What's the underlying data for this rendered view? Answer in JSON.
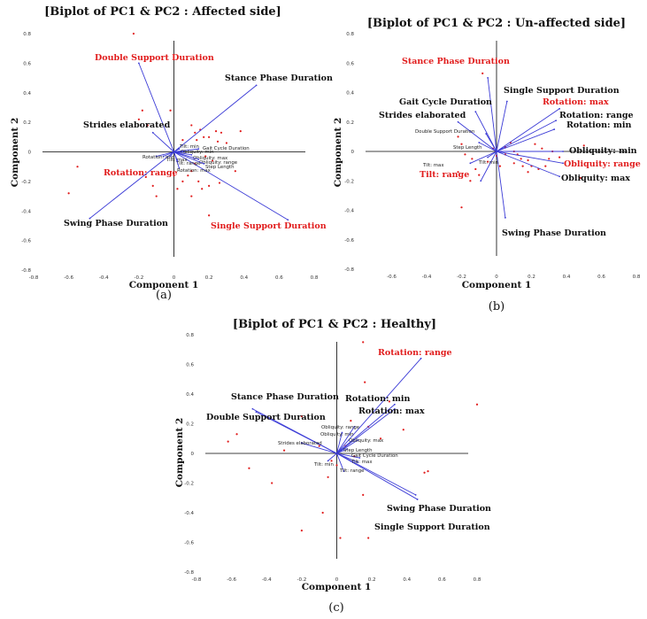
{
  "figure": {
    "colors": {
      "vector": "#3b3bd6",
      "highlight": "#e11d1d",
      "normal": "#111111",
      "score": "#e11d1d",
      "axis": "#000000"
    }
  },
  "chart_data": [
    {
      "type": "scatter",
      "panel_label": "(a)",
      "title": "[Biplot of PC1 & PC2 : Affected side]",
      "xlabel": "Component 1",
      "ylabel": "Component 2",
      "xlim": [
        -0.8,
        0.8
      ],
      "ylim": [
        -0.8,
        0.8
      ],
      "xticks": [
        "-0.8",
        "-0.6",
        "-0.4",
        "-0.2",
        "0",
        "0.2",
        "0.4",
        "0.6",
        "0.8"
      ],
      "yticks": [
        "-0.8",
        "-0.6",
        "-0.4",
        "-0.2",
        "0",
        "0.2",
        "0.4",
        "0.6",
        "0.8"
      ],
      "vectors": [
        {
          "name": "Double Support Duration",
          "x": -0.2,
          "y": 0.6,
          "label_size": "large",
          "highlight": true
        },
        {
          "name": "Stance Phase Duration",
          "x": 0.47,
          "y": 0.45,
          "label_size": "large",
          "highlight": false
        },
        {
          "name": "Strides elaborated",
          "x": -0.12,
          "y": 0.13,
          "label_size": "large",
          "highlight": false
        },
        {
          "name": "Rotation: range",
          "x": -0.06,
          "y": -0.03,
          "label_size": "large",
          "highlight": true
        },
        {
          "name": "Swing Phase Duration",
          "x": -0.48,
          "y": -0.45,
          "label_size": "large",
          "highlight": false
        },
        {
          "name": "Single Support Duration",
          "x": 0.65,
          "y": -0.46,
          "label_size": "large",
          "highlight": true
        },
        {
          "name": "Tilt: min",
          "x": 0.03,
          "y": 0.02,
          "label_size": "small",
          "highlight": false
        },
        {
          "name": "Gait Cycle Duration",
          "x": 0.14,
          "y": 0.02,
          "label_size": "small",
          "highlight": false
        },
        {
          "name": "Obliquity: min",
          "x": 0.06,
          "y": 0.0,
          "label_size": "small",
          "highlight": false
        },
        {
          "name": "Obliquity: max",
          "x": 0.1,
          "y": -0.02,
          "label_size": "small",
          "highlight": false
        },
        {
          "name": "Rotation: min",
          "x": -0.1,
          "y": -0.03,
          "label_size": "small",
          "highlight": false
        },
        {
          "name": "Tilt: max",
          "x": -0.02,
          "y": -0.03,
          "label_size": "small",
          "highlight": false
        },
        {
          "name": "Obliquity: range",
          "x": 0.14,
          "y": -0.05,
          "label_size": "small",
          "highlight": false
        },
        {
          "name": "Tilt: range",
          "x": 0.02,
          "y": -0.06,
          "label_size": "small",
          "highlight": false
        },
        {
          "name": "Step Length",
          "x": 0.17,
          "y": -0.08,
          "label_size": "small",
          "highlight": false
        },
        {
          "name": "Rotation: max",
          "x": 0.03,
          "y": -0.11,
          "label_size": "small",
          "highlight": false
        }
      ],
      "scores": [
        [
          -0.23,
          0.8
        ],
        [
          -0.55,
          -0.1
        ],
        [
          -0.6,
          -0.28
        ],
        [
          -0.18,
          0.28
        ],
        [
          -0.2,
          0.22
        ],
        [
          -0.15,
          0.18
        ],
        [
          -0.16,
          -0.17
        ],
        [
          -0.12,
          -0.23
        ],
        [
          -0.1,
          -0.3
        ],
        [
          -0.02,
          0.28
        ],
        [
          0.05,
          0.08
        ],
        [
          0.1,
          0.18
        ],
        [
          0.12,
          0.13
        ],
        [
          0.13,
          0.08
        ],
        [
          0.15,
          0.15
        ],
        [
          0.17,
          0.1
        ],
        [
          0.2,
          0.1
        ],
        [
          0.24,
          0.14
        ],
        [
          0.27,
          0.13
        ],
        [
          0.25,
          0.07
        ],
        [
          0.3,
          0.06
        ],
        [
          0.38,
          0.14
        ],
        [
          0.18,
          -0.03
        ],
        [
          0.22,
          -0.06
        ],
        [
          0.12,
          -0.08
        ],
        [
          0.1,
          -0.13
        ],
        [
          0.08,
          -0.16
        ],
        [
          0.14,
          -0.2
        ],
        [
          0.16,
          -0.25
        ],
        [
          0.2,
          -0.23
        ],
        [
          0.26,
          -0.21
        ],
        [
          0.02,
          -0.25
        ],
        [
          0.1,
          -0.3
        ],
        [
          0.2,
          -0.43
        ],
        [
          0.35,
          -0.13
        ],
        [
          0.05,
          -0.2
        ],
        [
          0.0,
          -0.16
        ]
      ]
    },
    {
      "type": "scatter",
      "panel_label": "(b)",
      "title": "[Biplot of PC1 & PC2 : Un-affected side]",
      "xlabel": "Component 1",
      "ylabel": "Component 2",
      "xlim": [
        -0.8,
        0.8
      ],
      "ylim": [
        -0.8,
        0.8
      ],
      "xticks": [
        "-0.6",
        "-0.4",
        "-0.2",
        "0",
        "0.2",
        "0.4",
        "0.6",
        "0.8"
      ],
      "yticks": [
        "-0.8",
        "-0.6",
        "-0.4",
        "-0.2",
        "0",
        "0.2",
        "0.4",
        "0.6",
        "0.8"
      ],
      "vectors": [
        {
          "name": "Stance Phase Duration",
          "x": -0.05,
          "y": 0.5,
          "label_size": "large",
          "highlight": true
        },
        {
          "name": "Single Support Duration",
          "x": 0.06,
          "y": 0.34,
          "label_size": "large",
          "highlight": false
        },
        {
          "name": "Gait Cycle Duration",
          "x": -0.12,
          "y": 0.27,
          "label_size": "large",
          "highlight": false
        },
        {
          "name": "Strides elaborated",
          "x": -0.22,
          "y": 0.2,
          "label_size": "large",
          "highlight": false
        },
        {
          "name": "Rotation: max",
          "x": 0.36,
          "y": 0.29,
          "label_size": "large",
          "highlight": true
        },
        {
          "name": "Rotation: range",
          "x": 0.34,
          "y": 0.21,
          "label_size": "large",
          "highlight": false
        },
        {
          "name": "Rotation: min",
          "x": 0.33,
          "y": 0.15,
          "label_size": "large",
          "highlight": false
        },
        {
          "name": "Obliquity: min",
          "x": 0.38,
          "y": 0.0,
          "label_size": "large",
          "highlight": false
        },
        {
          "name": "Obliquity: range",
          "x": 0.38,
          "y": -0.08,
          "label_size": "large",
          "highlight": true
        },
        {
          "name": "Obliquity: max",
          "x": 0.36,
          "y": -0.17,
          "label_size": "large",
          "highlight": false
        },
        {
          "name": "Tilt: range",
          "x": -0.09,
          "y": -0.2,
          "label_size": "large",
          "highlight": true
        },
        {
          "name": "Swing Phase Duration",
          "x": 0.05,
          "y": -0.45,
          "label_size": "large",
          "highlight": false
        },
        {
          "name": "Double Support Duration",
          "x": -0.06,
          "y": 0.12,
          "label_size": "small",
          "highlight": false
        },
        {
          "name": "Step Length",
          "x": -0.1,
          "y": 0.06,
          "label_size": "small",
          "highlight": false
        },
        {
          "name": "Tilt: min",
          "x": -0.05,
          "y": -0.04,
          "label_size": "small",
          "highlight": false
        },
        {
          "name": "Tilt: max",
          "x": -0.15,
          "y": -0.08,
          "label_size": "small",
          "highlight": false
        }
      ],
      "scores": [
        [
          -0.08,
          0.53
        ],
        [
          -0.2,
          -0.38
        ],
        [
          -0.22,
          0.1
        ],
        [
          -0.2,
          0.05
        ],
        [
          -0.18,
          -0.02
        ],
        [
          -0.14,
          -0.05
        ],
        [
          -0.12,
          -0.12
        ],
        [
          -0.1,
          -0.16
        ],
        [
          -0.15,
          -0.2
        ],
        [
          -0.22,
          -0.14
        ],
        [
          -0.02,
          0.02
        ],
        [
          0.0,
          -0.03
        ],
        [
          0.05,
          0.03
        ],
        [
          0.08,
          0.06
        ],
        [
          0.1,
          0.0
        ],
        [
          0.12,
          -0.02
        ],
        [
          0.14,
          -0.05
        ],
        [
          0.18,
          -0.06
        ],
        [
          0.2,
          -0.1
        ],
        [
          0.24,
          -0.12
        ],
        [
          0.28,
          -0.1
        ],
        [
          0.3,
          -0.05
        ],
        [
          0.26,
          0.02
        ],
        [
          0.22,
          0.05
        ],
        [
          0.15,
          -0.1
        ],
        [
          0.18,
          -0.14
        ],
        [
          0.1,
          -0.08
        ],
        [
          0.32,
          0.0
        ],
        [
          0.36,
          -0.04
        ],
        [
          0.5,
          0.04
        ],
        [
          0.48,
          -0.18
        ],
        [
          0.05,
          -0.02
        ],
        [
          0.02,
          -0.1
        ],
        [
          -0.05,
          -0.07
        ]
      ]
    },
    {
      "type": "scatter",
      "panel_label": "(c)",
      "title": "[Biplot of PC1 & PC2 : Healthy]",
      "xlabel": "Component 1",
      "ylabel": "Component 2",
      "xlim": [
        -0.8,
        0.8
      ],
      "ylim": [
        -0.8,
        0.8
      ],
      "xticks": [
        "-0.8",
        "-0.6",
        "-0.4",
        "-0.2",
        "0",
        "0.2",
        "0.4",
        "0.6",
        "0.8"
      ],
      "yticks": [
        "-0.8",
        "-0.6",
        "-0.4",
        "-0.2",
        "0",
        "0.2",
        "0.4",
        "0.6",
        "0.8"
      ],
      "vectors": [
        {
          "name": "Rotation: range",
          "x": 0.48,
          "y": 0.64,
          "label_size": "large",
          "highlight": true
        },
        {
          "name": "Stance Phase Duration",
          "x": -0.48,
          "y": 0.3,
          "label_size": "large",
          "highlight": false
        },
        {
          "name": "Double Support Duration",
          "x": -0.46,
          "y": 0.28,
          "label_size": "large",
          "highlight": false
        },
        {
          "name": "Rotation: min",
          "x": 0.33,
          "y": 0.33,
          "label_size": "large",
          "highlight": false
        },
        {
          "name": "Rotation: max",
          "x": 0.33,
          "y": 0.3,
          "label_size": "large",
          "highlight": false
        },
        {
          "name": "Swing Phase Duration",
          "x": 0.45,
          "y": -0.28,
          "label_size": "large",
          "highlight": false
        },
        {
          "name": "Single Support Duration",
          "x": 0.46,
          "y": -0.31,
          "label_size": "large",
          "highlight": false
        },
        {
          "name": "Obliquity: range",
          "x": 0.1,
          "y": 0.18,
          "label_size": "small",
          "highlight": false
        },
        {
          "name": "Obliquity: min",
          "x": 0.03,
          "y": 0.14,
          "label_size": "small",
          "highlight": false
        },
        {
          "name": "Strides elaborated",
          "x": -0.2,
          "y": 0.07,
          "label_size": "small",
          "highlight": false
        },
        {
          "name": "Obliquity: max",
          "x": 0.12,
          "y": 0.09,
          "label_size": "small",
          "highlight": false
        },
        {
          "name": "Step Length",
          "x": 0.06,
          "y": 0.03,
          "label_size": "small",
          "highlight": false
        },
        {
          "name": "Gait Cycle Duration",
          "x": 0.13,
          "y": -0.03,
          "label_size": "small",
          "highlight": false
        },
        {
          "name": "Tilt: max",
          "x": 0.12,
          "y": -0.06,
          "label_size": "small",
          "highlight": false
        },
        {
          "name": "Tilt: min",
          "x": -0.05,
          "y": -0.05,
          "label_size": "small",
          "highlight": false
        },
        {
          "name": "Tilt: range",
          "x": 0.04,
          "y": -0.12,
          "label_size": "small",
          "highlight": false
        }
      ],
      "scores": [
        [
          0.15,
          0.75
        ],
        [
          0.8,
          0.33
        ],
        [
          -0.2,
          0.25
        ],
        [
          -0.3,
          0.02
        ],
        [
          -0.62,
          0.08
        ],
        [
          -0.57,
          0.13
        ],
        [
          -0.5,
          -0.1
        ],
        [
          -0.37,
          -0.2
        ],
        [
          -0.2,
          -0.52
        ],
        [
          -0.08,
          -0.4
        ],
        [
          -0.05,
          -0.16
        ],
        [
          -0.03,
          -0.05
        ],
        [
          0.0,
          -0.08
        ],
        [
          0.05,
          0.05
        ],
        [
          0.08,
          0.22
        ],
        [
          0.18,
          0.18
        ],
        [
          0.25,
          0.1
        ],
        [
          0.38,
          0.16
        ],
        [
          0.3,
          0.35
        ],
        [
          0.16,
          0.48
        ],
        [
          0.15,
          -0.28
        ],
        [
          0.18,
          -0.57
        ],
        [
          0.02,
          -0.57
        ],
        [
          0.5,
          -0.13
        ],
        [
          0.52,
          -0.12
        ],
        [
          0.1,
          -0.02
        ],
        [
          -0.1,
          0.05
        ]
      ]
    }
  ]
}
